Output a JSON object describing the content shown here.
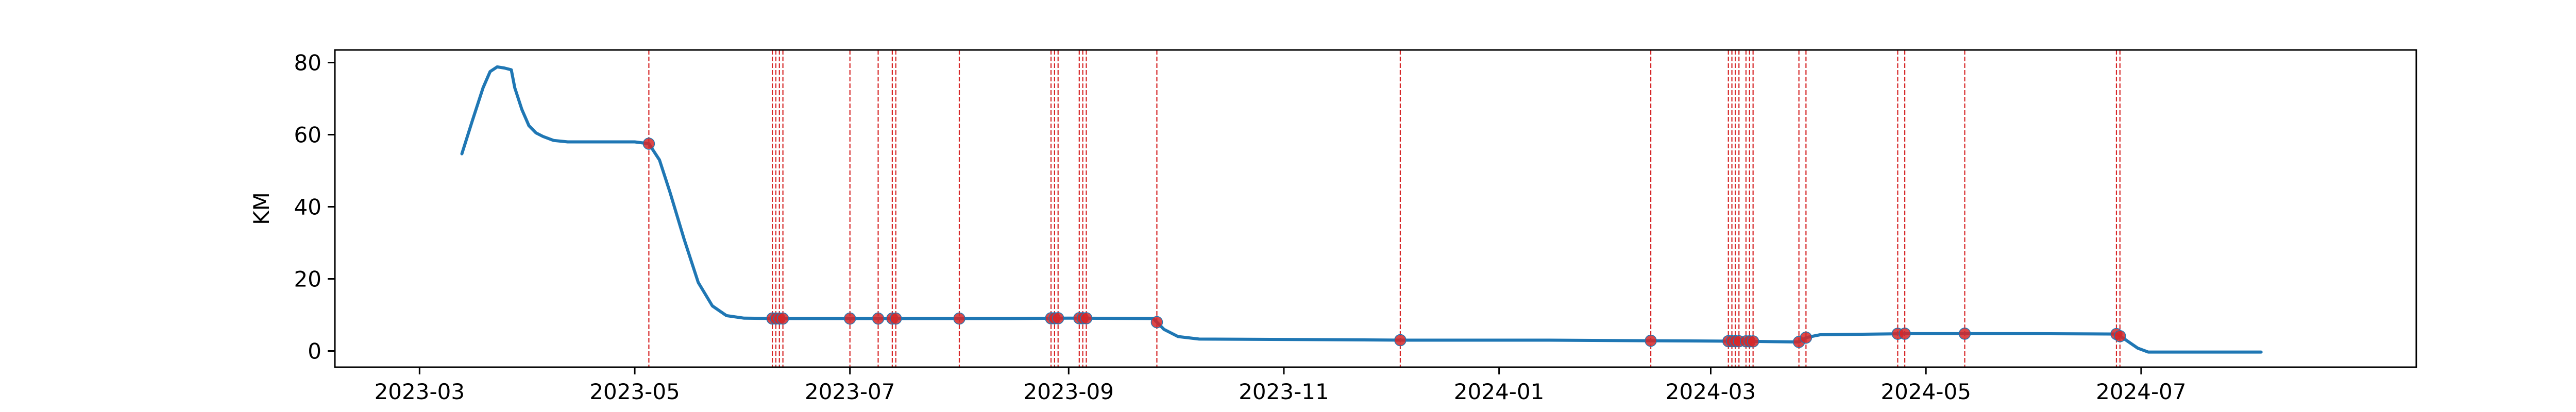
{
  "chart_data": {
    "type": "line",
    "title": "",
    "xlabel": "",
    "ylabel": "KM",
    "x_ticks": [
      "2023-03",
      "2023-05",
      "2023-07",
      "2023-09",
      "2023-11",
      "2024-01",
      "2024-03",
      "2024-05",
      "2024-07"
    ],
    "y_ticks": [
      "0",
      "20",
      "40",
      "60",
      "80"
    ],
    "xlim": [
      "2023-02-05",
      "2024-09-17"
    ],
    "ylim": [
      -4.5,
      83.5
    ],
    "grid": false,
    "colors": {
      "line": "#1f77b4",
      "marker": "#d62728",
      "event_line": "#d62728"
    },
    "series": [
      {
        "values": [
          [
            "2023-03-13",
            54.7
          ],
          [
            "2023-03-16",
            64
          ],
          [
            "2023-03-19",
            73
          ],
          [
            "2023-03-21",
            77.5
          ],
          [
            "2023-03-23",
            78.8
          ],
          [
            "2023-03-25",
            78.5
          ],
          [
            "2023-03-27",
            78
          ],
          [
            "2023-03-28",
            73
          ],
          [
            "2023-03-30",
            67
          ],
          [
            "2023-04-01",
            62.5
          ],
          [
            "2023-04-03",
            60.5
          ],
          [
            "2023-04-05",
            59.5
          ],
          [
            "2023-04-08",
            58.4
          ],
          [
            "2023-04-12",
            58
          ],
          [
            "2023-04-20",
            58
          ],
          [
            "2023-05-01",
            58
          ],
          [
            "2023-05-05",
            57.5
          ],
          [
            "2023-05-08",
            53
          ],
          [
            "2023-05-11",
            44
          ],
          [
            "2023-05-15",
            31
          ],
          [
            "2023-05-19",
            19
          ],
          [
            "2023-05-23",
            12.5
          ],
          [
            "2023-05-27",
            9.8
          ],
          [
            "2023-06-01",
            9.1
          ],
          [
            "2023-06-10",
            9
          ],
          [
            "2023-07-01",
            9
          ],
          [
            "2023-08-01",
            9
          ],
          [
            "2023-08-15",
            9
          ],
          [
            "2023-09-01",
            9.1
          ],
          [
            "2023-09-25",
            9
          ],
          [
            "2023-09-28",
            6
          ],
          [
            "2023-10-02",
            4
          ],
          [
            "2023-10-08",
            3.3
          ],
          [
            "2023-11-01",
            3.2
          ],
          [
            "2023-12-05",
            3
          ],
          [
            "2024-01-15",
            3
          ],
          [
            "2024-02-20",
            2.8
          ],
          [
            "2024-03-10",
            2.7
          ],
          [
            "2024-03-26",
            2.5
          ],
          [
            "2024-03-28",
            3.7
          ],
          [
            "2024-04-01",
            4.5
          ],
          [
            "2024-04-25",
            4.8
          ],
          [
            "2024-05-15",
            4.8
          ],
          [
            "2024-06-01",
            4.8
          ],
          [
            "2024-06-24",
            4.7
          ],
          [
            "2024-06-26",
            3.5
          ],
          [
            "2024-06-30",
            0.8
          ],
          [
            "2024-07-03",
            -0.3
          ],
          [
            "2024-07-20",
            -0.3
          ],
          [
            "2024-08-04",
            -0.3
          ]
        ]
      }
    ],
    "event_dates": [
      "2023-05-05",
      "2023-06-09",
      "2023-06-10",
      "2023-06-11",
      "2023-06-12",
      "2023-07-01",
      "2023-07-09",
      "2023-07-13",
      "2023-07-14",
      "2023-08-01",
      "2023-08-27",
      "2023-08-28",
      "2023-08-29",
      "2023-09-04",
      "2023-09-05",
      "2023-09-06",
      "2023-09-26",
      "2023-12-04",
      "2024-02-13",
      "2024-03-06",
      "2024-03-07",
      "2024-03-08",
      "2024-03-09",
      "2024-03-11",
      "2024-03-12",
      "2024-03-13",
      "2024-03-26",
      "2024-03-28",
      "2024-04-23",
      "2024-04-25",
      "2024-05-12",
      "2024-06-24",
      "2024-06-25"
    ]
  }
}
